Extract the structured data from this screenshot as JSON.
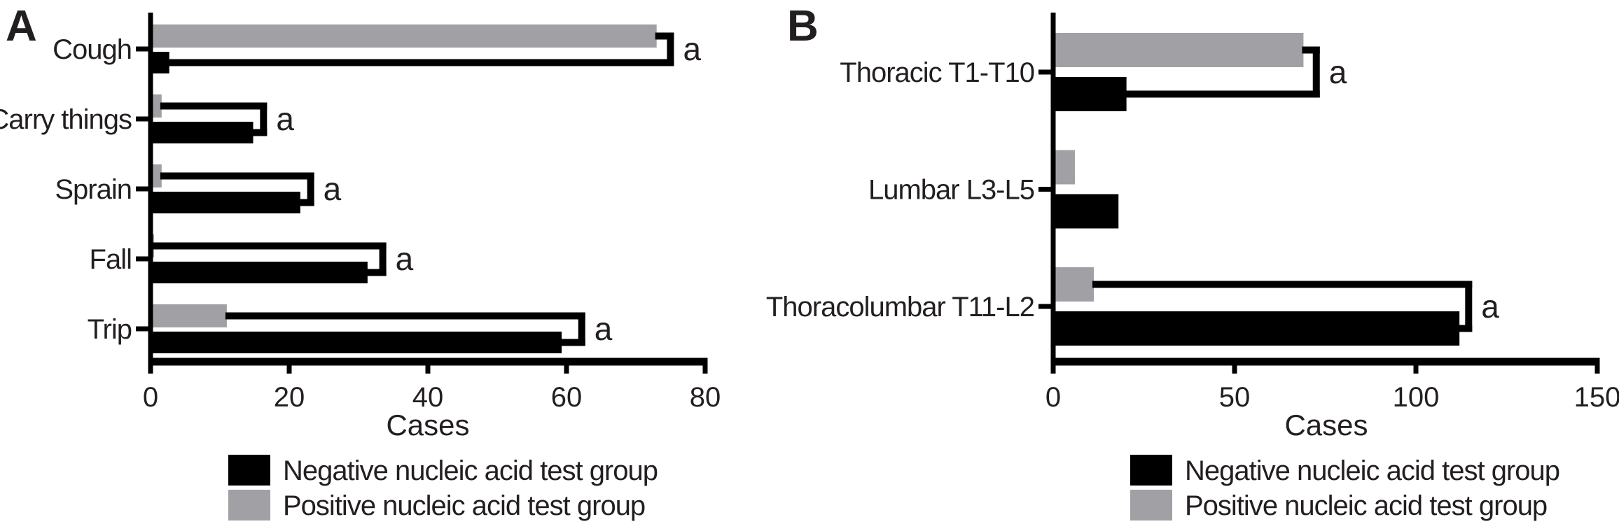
{
  "figure": {
    "background": "#ffffff",
    "colors": {
      "black": "#000000",
      "gray": "#a1a1a5",
      "text": "#231f20"
    }
  },
  "chart_data": [
    {
      "type": "bar",
      "orientation": "horizontal",
      "panel_label": "A",
      "title": "",
      "xlabel": "Cases",
      "ylabel": "",
      "xlim": [
        0,
        80
      ],
      "xticks": [
        0,
        20,
        40,
        60,
        80
      ],
      "grid": false,
      "legend_position": "bottom",
      "categories": [
        "Cough",
        "Carry things",
        "Sprain",
        "Fall",
        "Trip"
      ],
      "series": [
        {
          "name": "Negative nucleic acid test group",
          "color_key": "black",
          "values": [
            2.7,
            14.8,
            21.6,
            31.3,
            59.3
          ]
        },
        {
          "name": "Positive nucleic acid test group",
          "color_key": "gray",
          "values": [
            73,
            1.6,
            1.6,
            0.5,
            11
          ]
        }
      ],
      "sig_label": "a",
      "sig_brackets": [
        75.5,
        16.8,
        23.6,
        34,
        62.7
      ]
    },
    {
      "type": "bar",
      "orientation": "horizontal",
      "panel_label": "B",
      "title": "",
      "xlabel": "Cases",
      "ylabel": "",
      "xlim": [
        0,
        150
      ],
      "xticks": [
        0,
        50,
        100,
        150
      ],
      "grid": false,
      "legend_position": "bottom",
      "categories": [
        "Thoracic T1-T10",
        "Lumbar L3-L5",
        "Thoracolumbar T11-L2"
      ],
      "series": [
        {
          "name": "Negative nucleic acid test group",
          "color_key": "black",
          "values": [
            20.2,
            18,
            112
          ]
        },
        {
          "name": "Positive nucleic acid test group",
          "color_key": "gray",
          "values": [
            69,
            6,
            11.2
          ]
        }
      ],
      "sig_label": "a",
      "sig_brackets": [
        73.5,
        null,
        115.5
      ]
    }
  ]
}
